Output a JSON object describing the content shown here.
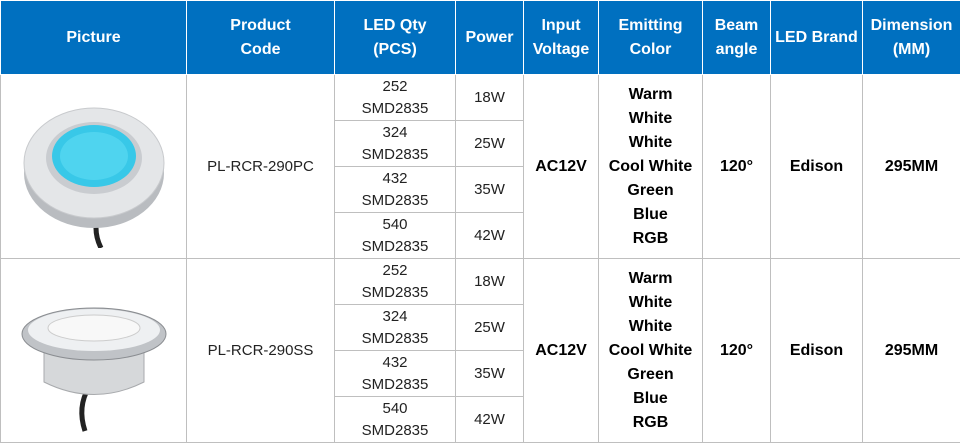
{
  "header": {
    "columns": [
      [
        "Picture"
      ],
      [
        "Product",
        "Code"
      ],
      [
        "LED Qty",
        "(PCS)"
      ],
      [
        "Power"
      ],
      [
        "Input",
        "Voltage"
      ],
      [
        "Emitting",
        "Color"
      ],
      [
        "Beam",
        "angle"
      ],
      [
        "LED Brand"
      ],
      [
        "Dimension",
        "(MM)"
      ]
    ]
  },
  "rows": [
    {
      "code": "PL-RCR-290PC",
      "led": [
        [
          "252",
          "SMD2835"
        ],
        [
          "324",
          "SMD2835"
        ],
        [
          "432",
          "SMD2835"
        ],
        [
          "540",
          "SMD2835"
        ]
      ],
      "power": [
        "18W",
        "25W",
        "35W",
        "42W"
      ],
      "voltage": "AC12V",
      "colors": [
        "Warm",
        "White",
        "White",
        "Cool White",
        "Green",
        "Blue",
        "RGB"
      ],
      "beam": "120°",
      "brand": "Edison",
      "dimension": "295MM"
    },
    {
      "code": "PL-RCR-290SS",
      "led": [
        [
          "252",
          "SMD2835"
        ],
        [
          "324",
          "SMD2835"
        ],
        [
          "432",
          "SMD2835"
        ],
        [
          "540",
          "SMD2835"
        ]
      ],
      "power": [
        "18W",
        "25W",
        "35W",
        "42W"
      ],
      "voltage": "AC12V",
      "colors": [
        "Warm",
        "White",
        "White",
        "Cool White",
        "Green",
        "Blue",
        "RGB"
      ],
      "beam": "120°",
      "brand": "Edison",
      "dimension": "295MM"
    }
  ]
}
